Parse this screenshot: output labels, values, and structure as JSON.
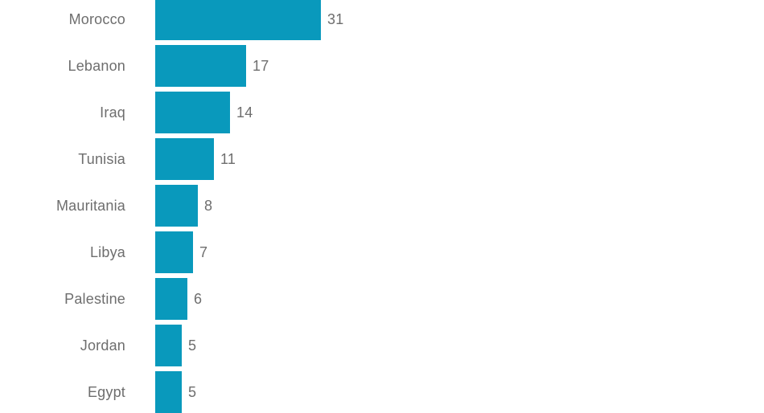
{
  "chart_data": {
    "type": "bar",
    "orientation": "horizontal",
    "title": "",
    "xlabel": "",
    "ylabel": "",
    "categories": [
      "Morocco",
      "Lebanon",
      "Iraq",
      "Tunisia",
      "Mauritania",
      "Libya",
      "Palestine",
      "Jordan",
      "Egypt"
    ],
    "values": [
      31,
      17,
      14,
      11,
      8,
      7,
      6,
      5,
      5
    ],
    "value_labels": [
      "31",
      "17",
      "14",
      "11",
      "8",
      "7",
      "6",
      "5",
      "5"
    ],
    "xlim": [
      0,
      31
    ],
    "grid": false,
    "legend": false,
    "bar_color": "#0999bc",
    "text_color": "#6e6e6e",
    "background_color": "#ffffff"
  }
}
